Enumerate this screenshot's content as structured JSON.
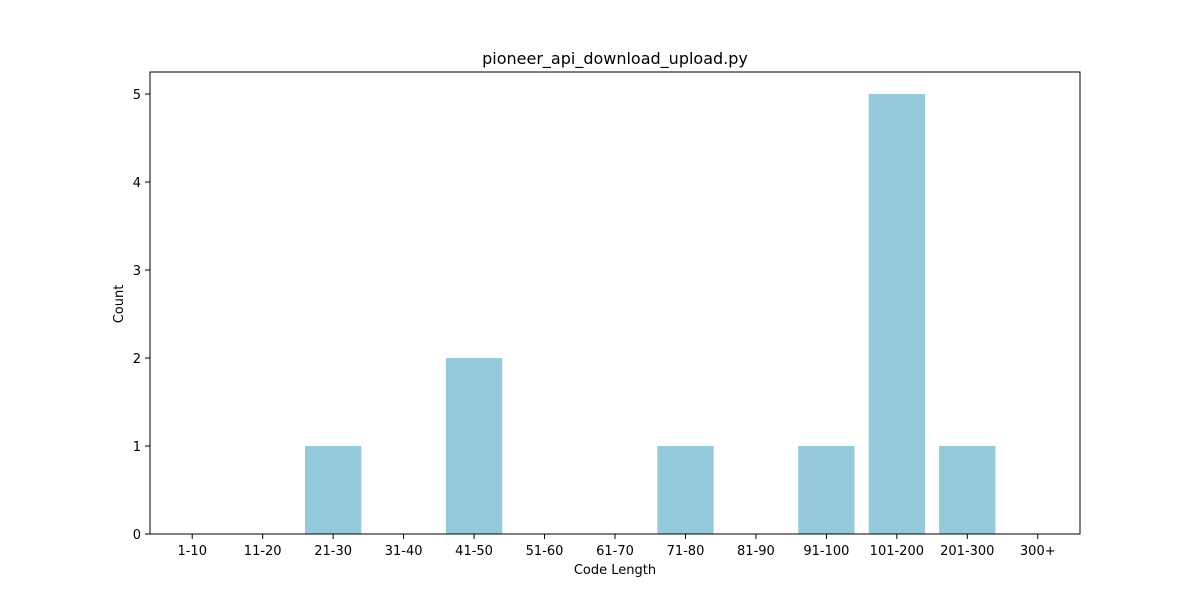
{
  "chart_data": {
    "type": "bar",
    "title": "pioneer_api_download_upload.py",
    "xlabel": "Code Length",
    "ylabel": "Count",
    "categories": [
      "1-10",
      "11-20",
      "21-30",
      "31-40",
      "41-50",
      "51-60",
      "61-70",
      "71-80",
      "81-90",
      "91-100",
      "101-200",
      "201-300",
      "300+"
    ],
    "values": [
      0,
      0,
      1,
      0,
      2,
      0,
      0,
      1,
      0,
      1,
      5,
      1,
      0
    ],
    "ylim": [
      0,
      5.25
    ],
    "yticks": [
      0,
      1,
      2,
      3,
      4,
      5
    ],
    "grid": false,
    "legend": false,
    "bar_color": "#96c9dc"
  }
}
